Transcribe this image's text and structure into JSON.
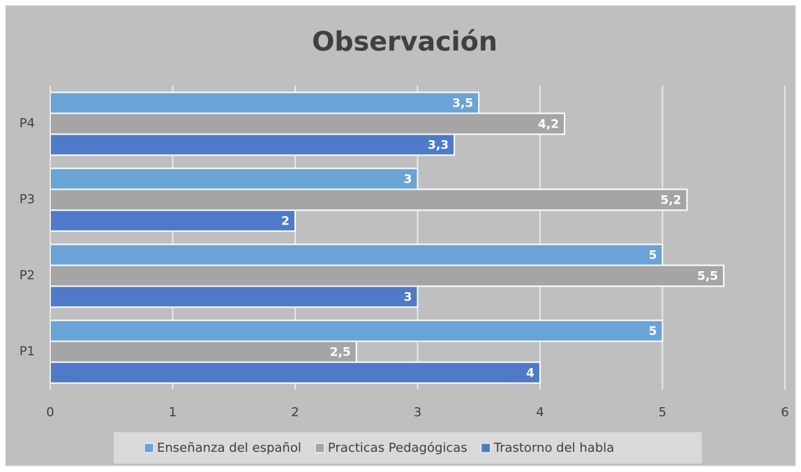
{
  "chart_data": {
    "type": "hbar",
    "title": "Observación",
    "categories": [
      "P1",
      "P2",
      "P3",
      "P4"
    ],
    "series": [
      {
        "name": "Enseñanza del español",
        "color": "#6aa3d5",
        "values": [
          5,
          5,
          3,
          3.5
        ],
        "value_labels": [
          "5",
          "5",
          "3",
          "3,5"
        ]
      },
      {
        "name": "Practicas Pedagógicas",
        "color": "#a5a5a5",
        "values": [
          2.5,
          5.5,
          5.2,
          4.2
        ],
        "value_labels": [
          "2,5",
          "5,5",
          "5,2",
          "4,2"
        ]
      },
      {
        "name": "Trastorno del habla",
        "color": "#4f7ac8",
        "values": [
          4,
          3,
          2,
          3.3
        ],
        "value_labels": [
          "4",
          "3",
          "2",
          "3,3"
        ]
      }
    ],
    "xlim": [
      0,
      6
    ],
    "xticks": [
      0,
      1,
      2,
      3,
      4,
      5,
      6
    ],
    "grid": true,
    "legend": "bottom"
  }
}
